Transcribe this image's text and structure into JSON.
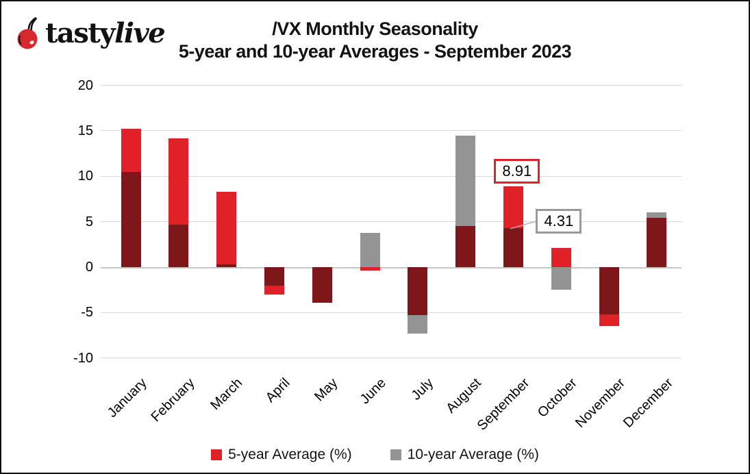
{
  "logo": {
    "tasty": "tasty",
    "live": "live"
  },
  "title": {
    "line1": "/VX Monthly Seasonality",
    "line2": "5-year and 10-year Averages - September 2023"
  },
  "legend": {
    "items": [
      {
        "label": "5-year Average (%)",
        "color": "#e02128"
      },
      {
        "label": "10-year Average (%)",
        "color": "#949494"
      }
    ]
  },
  "annotations": [
    {
      "text": "8.91",
      "month_index": 8,
      "value": 8.91,
      "accent": "#e02128",
      "placement": "above"
    },
    {
      "text": "4.31",
      "month_index": 8,
      "value": 4.31,
      "accent": "#999999",
      "placement": "right",
      "leader": true
    }
  ],
  "chart_data": {
    "type": "bar",
    "title": "/VX Monthly Seasonality 5-year and 10-year Averages - September 2023",
    "categories": [
      "January",
      "February",
      "March",
      "April",
      "May",
      "June",
      "July",
      "August",
      "September",
      "October",
      "November",
      "December"
    ],
    "series": [
      {
        "name": "5-year Average (%)",
        "color": "#e02128",
        "values": [
          15.2,
          14.2,
          8.3,
          -3.0,
          -3.9,
          -0.4,
          -5.3,
          4.5,
          8.91,
          2.1,
          -6.5,
          5.4
        ]
      },
      {
        "name": "10-year Average (%)",
        "color": "#949494",
        "values": [
          10.5,
          4.7,
          0.3,
          -2.0,
          -3.9,
          3.8,
          -7.3,
          14.5,
          4.31,
          -2.5,
          -5.2,
          6.0
        ]
      }
    ],
    "overlap_color": "#7e171a",
    "xlabel": "",
    "ylabel": "",
    "ylim": [
      -10,
      20
    ],
    "yticks": [
      20,
      15,
      10,
      5,
      0,
      -5,
      -10
    ],
    "grid": true,
    "grid_color": "#d9d9d9",
    "legend_position": "bottom",
    "data_labels": [
      {
        "month": "September",
        "series": "5-year Average (%)",
        "value": "8.91"
      },
      {
        "month": "September",
        "series": "10-year Average (%)",
        "value": "4.31"
      }
    ]
  }
}
